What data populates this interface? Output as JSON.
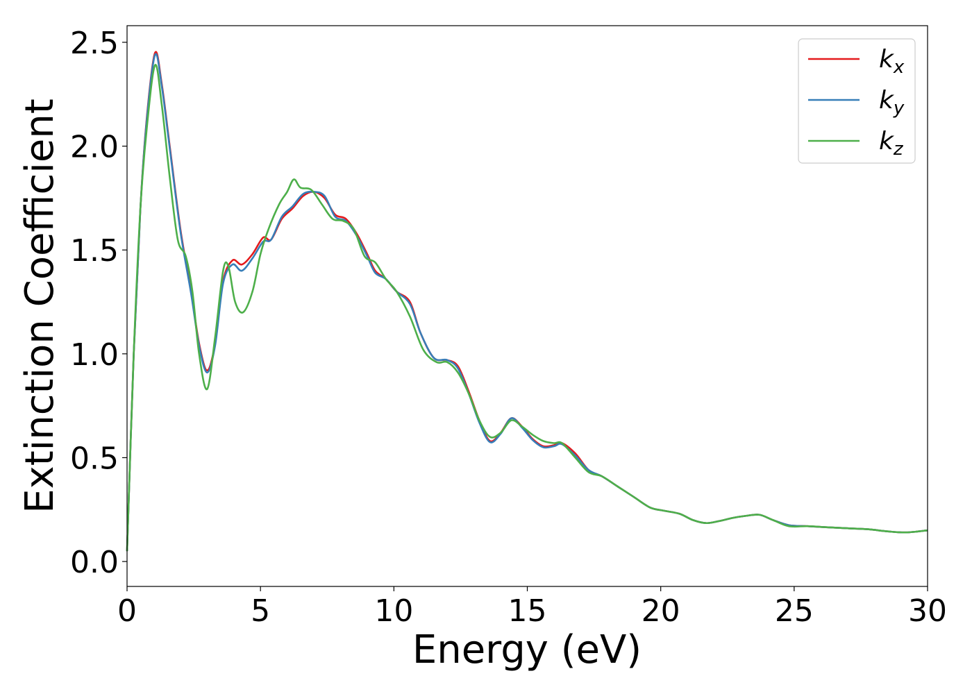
{
  "chart_data": {
    "type": "line",
    "title": "",
    "xlabel": "Energy (eV)",
    "ylabel": "Extinction Coefficient",
    "xlim": [
      0,
      30
    ],
    "ylim": [
      -0.12,
      2.58
    ],
    "xticks": [
      0,
      5,
      10,
      15,
      20,
      25,
      30
    ],
    "yticks": [
      0.0,
      0.5,
      1.0,
      1.5,
      2.0,
      2.5
    ],
    "xtick_labels": [
      "0",
      "5",
      "10",
      "15",
      "20",
      "25",
      "30"
    ],
    "ytick_labels": [
      "0.0",
      "0.5",
      "1.0",
      "1.5",
      "2.0",
      "2.5"
    ],
    "grid": false,
    "legend_position": "top-right",
    "series": [
      {
        "name": "k_x",
        "base": "k",
        "sub": "x",
        "color": "#e41a1c",
        "x": [
          0,
          0.25,
          0.5,
          0.75,
          1.05,
          1.3,
          1.6,
          2.0,
          2.4,
          2.7,
          3.0,
          3.3,
          3.6,
          3.95,
          4.3,
          4.7,
          5.1,
          5.4,
          5.8,
          6.2,
          6.6,
          7.0,
          7.4,
          7.8,
          8.2,
          8.6,
          9.0,
          9.3,
          9.7,
          10.1,
          10.6,
          11.0,
          11.5,
          12.0,
          12.4,
          12.8,
          13.2,
          13.6,
          14.0,
          14.4,
          14.8,
          15.2,
          15.6,
          16.0,
          16.3,
          16.8,
          17.3,
          17.8,
          18.4,
          19.0,
          19.6,
          20.1,
          20.7,
          21.2,
          21.7,
          22.2,
          22.7,
          23.2,
          23.7,
          24.2,
          24.8,
          25.5,
          26.2,
          27.0,
          27.8,
          28.5,
          29.2,
          30.0
        ],
        "y": [
          0.05,
          1.0,
          1.7,
          2.15,
          2.45,
          2.3,
          2.0,
          1.6,
          1.3,
          1.05,
          0.92,
          1.05,
          1.35,
          1.45,
          1.43,
          1.48,
          1.56,
          1.55,
          1.65,
          1.7,
          1.76,
          1.78,
          1.75,
          1.67,
          1.65,
          1.58,
          1.48,
          1.4,
          1.36,
          1.3,
          1.25,
          1.1,
          0.98,
          0.97,
          0.94,
          0.82,
          0.68,
          0.58,
          0.62,
          0.69,
          0.65,
          0.59,
          0.555,
          0.56,
          0.57,
          0.52,
          0.44,
          0.41,
          0.36,
          0.31,
          0.26,
          0.245,
          0.23,
          0.2,
          0.185,
          0.195,
          0.21,
          0.22,
          0.225,
          0.2,
          0.175,
          0.17,
          0.165,
          0.16,
          0.155,
          0.145,
          0.14,
          0.15
        ]
      },
      {
        "name": "k_y",
        "base": "k",
        "sub": "y",
        "color": "#377eb8",
        "x": [
          0,
          0.25,
          0.5,
          0.75,
          1.05,
          1.3,
          1.6,
          2.0,
          2.4,
          2.7,
          3.0,
          3.3,
          3.6,
          3.95,
          4.3,
          4.7,
          5.1,
          5.4,
          5.8,
          6.2,
          6.6,
          7.0,
          7.4,
          7.8,
          8.2,
          8.6,
          9.0,
          9.3,
          9.7,
          10.1,
          10.6,
          11.0,
          11.5,
          12.0,
          12.4,
          12.8,
          13.2,
          13.6,
          14.0,
          14.4,
          14.8,
          15.2,
          15.6,
          16.0,
          16.3,
          16.8,
          17.3,
          17.8,
          18.4,
          19.0,
          19.6,
          20.1,
          20.7,
          21.2,
          21.7,
          22.2,
          22.7,
          23.2,
          23.7,
          24.2,
          24.8,
          25.5,
          26.2,
          27.0,
          27.8,
          28.5,
          29.2,
          30.0
        ],
        "y": [
          0.05,
          1.0,
          1.7,
          2.14,
          2.44,
          2.29,
          1.99,
          1.59,
          1.29,
          1.04,
          0.91,
          1.04,
          1.34,
          1.43,
          1.4,
          1.46,
          1.54,
          1.55,
          1.66,
          1.71,
          1.77,
          1.78,
          1.76,
          1.66,
          1.64,
          1.57,
          1.47,
          1.39,
          1.36,
          1.3,
          1.24,
          1.1,
          0.98,
          0.97,
          0.93,
          0.81,
          0.67,
          0.575,
          0.615,
          0.69,
          0.645,
          0.585,
          0.55,
          0.555,
          0.565,
          0.51,
          0.44,
          0.41,
          0.36,
          0.31,
          0.26,
          0.245,
          0.23,
          0.2,
          0.185,
          0.195,
          0.21,
          0.22,
          0.225,
          0.2,
          0.175,
          0.17,
          0.165,
          0.16,
          0.155,
          0.145,
          0.14,
          0.15
        ]
      },
      {
        "name": "k_z",
        "base": "k",
        "sub": "z",
        "color": "#4daf4a",
        "x": [
          0,
          0.25,
          0.5,
          0.75,
          1.05,
          1.3,
          1.6,
          1.9,
          2.2,
          2.45,
          2.7,
          3.0,
          3.3,
          3.6,
          3.8,
          4.05,
          4.35,
          4.7,
          5.0,
          5.3,
          5.7,
          6.0,
          6.25,
          6.5,
          6.9,
          7.3,
          7.7,
          8.1,
          8.5,
          8.9,
          9.3,
          9.7,
          10.1,
          10.6,
          11.1,
          11.6,
          12.0,
          12.4,
          12.8,
          13.2,
          13.6,
          14.0,
          14.4,
          14.8,
          15.2,
          15.6,
          16.0,
          16.3,
          16.8,
          17.3,
          17.8,
          18.4,
          19.0,
          19.6,
          20.1,
          20.7,
          21.2,
          21.7,
          22.2,
          22.7,
          23.2,
          23.7,
          24.2,
          24.8,
          25.5,
          26.2,
          27.0,
          27.8,
          28.5,
          29.2,
          30.0
        ],
        "y": [
          0.05,
          1.0,
          1.7,
          2.1,
          2.39,
          2.2,
          1.85,
          1.55,
          1.47,
          1.3,
          1.0,
          0.83,
          1.08,
          1.4,
          1.42,
          1.25,
          1.2,
          1.3,
          1.48,
          1.6,
          1.72,
          1.78,
          1.84,
          1.8,
          1.79,
          1.72,
          1.65,
          1.64,
          1.6,
          1.47,
          1.44,
          1.36,
          1.3,
          1.18,
          1.02,
          0.96,
          0.96,
          0.91,
          0.81,
          0.68,
          0.6,
          0.62,
          0.68,
          0.65,
          0.61,
          0.58,
          0.57,
          0.57,
          0.5,
          0.43,
          0.41,
          0.36,
          0.31,
          0.26,
          0.245,
          0.23,
          0.2,
          0.185,
          0.195,
          0.21,
          0.22,
          0.225,
          0.2,
          0.17,
          0.17,
          0.165,
          0.16,
          0.155,
          0.145,
          0.14,
          0.15
        ]
      }
    ]
  }
}
